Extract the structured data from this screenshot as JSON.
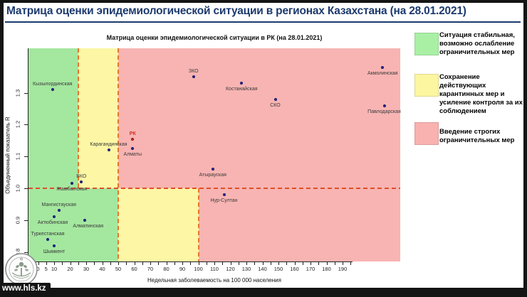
{
  "page_title": "Матрица оценки эпидемиологической ситуации в регионах Казахстана (на 28.01.2021)",
  "watermark": "www.hls.kz",
  "chart_data": {
    "type": "scatter",
    "title": "Матрица оценки эпидемиологической ситуации в РК (на 28.01.2021)",
    "xlabel": "Недельная заболеваемость на 100 000 населения",
    "ylabel": "Объединенный показатель R",
    "xlim": [
      -6,
      226
    ],
    "ylim": [
      0.77,
      1.44
    ],
    "grid": false,
    "x_ticks_labeled": [
      0,
      5,
      10,
      20,
      30,
      40,
      50,
      60,
      70,
      80,
      90,
      100,
      110,
      120,
      130,
      140,
      150,
      160,
      170,
      180,
      190
    ],
    "x_tick_minor_step": 5,
    "x_tick_minor_max": 195,
    "y_ticks": [
      0.8,
      0.9,
      1.0,
      1.1,
      1.2,
      1.3
    ],
    "zones": {
      "r_threshold": 1.0,
      "upper_x_bounds": [
        25,
        50
      ],
      "lower_x_bounds": [
        50,
        100
      ]
    },
    "colors": {
      "green": "#a4e79f",
      "yellow": "#fcf6a5",
      "red": "#f7b4b2",
      "point": "#2d2d96",
      "point_border": "#191970",
      "highlight": "#d32d1f",
      "dashed": "#e0552a"
    },
    "points": [
      {
        "label": "Кызылординская",
        "x": 9,
        "r": 1.31,
        "label_pos": "above"
      },
      {
        "label": "ЗКО",
        "x": 97,
        "r": 1.35,
        "label_pos": "above"
      },
      {
        "label": "Костанайская",
        "x": 127,
        "r": 1.33,
        "label_pos": "below"
      },
      {
        "label": "СКО",
        "x": 148,
        "r": 1.28,
        "label_pos": "below"
      },
      {
        "label": "Акмолинская",
        "x": 215,
        "r": 1.38,
        "label_pos": "below"
      },
      {
        "label": "Павлодарская",
        "x": 216,
        "r": 1.26,
        "label_pos": "below"
      },
      {
        "label": "Карагандинская",
        "x": 44,
        "r": 1.12,
        "label_pos": "above"
      },
      {
        "label": "РК",
        "x": 59,
        "r": 1.155,
        "label_pos": "above",
        "highlight": true
      },
      {
        "label": "Алматы",
        "x": 59,
        "r": 1.125,
        "label_pos": "below"
      },
      {
        "label": "Атырауская",
        "x": 109,
        "r": 1.06,
        "label_pos": "below"
      },
      {
        "label": "ВКО",
        "x": 27,
        "r": 1.02,
        "label_pos": "above"
      },
      {
        "label": "Жамбылская",
        "x": 21,
        "r": 1.015,
        "label_pos": "below"
      },
      {
        "label": "Нур-Султан",
        "x": 116,
        "r": 0.98,
        "label_pos": "below"
      },
      {
        "label": "Мангистауская",
        "x": 13,
        "r": 0.93,
        "label_pos": "above"
      },
      {
        "label": "Актюбинская",
        "x": 10,
        "r": 0.91,
        "label_pos": "below",
        "dx": -2
      },
      {
        "label": "Алматинская",
        "x": 29,
        "r": 0.9,
        "label_pos": "below",
        "dx": 5
      },
      {
        "label": "Туркестанская",
        "x": 6,
        "r": 0.84,
        "label_pos": "above"
      },
      {
        "label": "Шымкент",
        "x": 10,
        "r": 0.82,
        "label_pos": "below"
      }
    ]
  },
  "legend": {
    "items": [
      {
        "color": "#a9f0a5",
        "text": "Ситуация стабильная, возможно ослабление ограничительных мер"
      },
      {
        "color": "#fdf6a0",
        "text": "Сохранение действующих карантинных мер и усиление контроля за их соблюдением"
      },
      {
        "color": "#f9b2b0",
        "text": "Введение строгих ограничительных мер"
      }
    ]
  }
}
